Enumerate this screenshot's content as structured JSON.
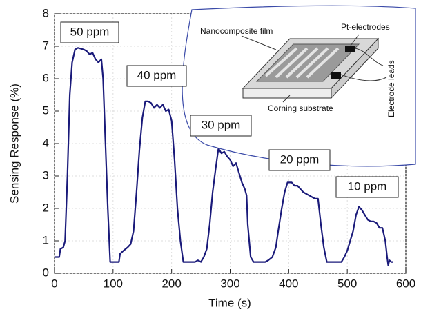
{
  "chart_data": {
    "type": "line",
    "xlabel": "Time (s)",
    "ylabel": "Sensing Response (%)",
    "xlim": [
      0,
      600
    ],
    "ylim": [
      0,
      8
    ],
    "xticks": [
      0,
      100,
      200,
      300,
      400,
      500,
      600
    ],
    "yticks": [
      0,
      1,
      2,
      3,
      4,
      5,
      6,
      7,
      8
    ],
    "grid": true,
    "x": [
      0,
      8,
      10,
      15,
      18,
      22,
      26,
      30,
      35,
      40,
      50,
      55,
      60,
      65,
      70,
      75,
      80,
      83,
      87,
      91,
      95,
      100,
      110,
      112,
      118,
      125,
      130,
      135,
      140,
      145,
      150,
      155,
      160,
      165,
      170,
      175,
      180,
      185,
      190,
      195,
      200,
      205,
      210,
      215,
      220,
      230,
      240,
      245,
      250,
      255,
      260,
      265,
      270,
      275,
      280,
      285,
      290,
      295,
      300,
      305,
      310,
      315,
      320,
      325,
      328,
      330,
      335,
      340,
      360,
      365,
      372,
      378,
      382,
      388,
      393,
      398,
      405,
      410,
      415,
      425,
      435,
      445,
      450,
      455,
      460,
      465,
      480,
      490,
      495,
      500,
      505,
      510,
      515,
      520,
      525,
      530,
      535,
      540,
      545,
      550,
      555,
      560,
      565,
      568,
      570,
      572,
      575,
      578
    ],
    "series": [
      {
        "color": "#1a1a7a",
        "values": [
          0.5,
          0.5,
          0.75,
          0.8,
          1.0,
          3,
          5.5,
          6.5,
          6.9,
          6.95,
          6.9,
          6.85,
          6.75,
          6.8,
          6.6,
          6.5,
          6.6,
          6.0,
          4,
          2,
          0.35,
          0.35,
          0.35,
          0.6,
          0.7,
          0.8,
          0.9,
          1.3,
          2.5,
          3.8,
          4.8,
          5.3,
          5.3,
          5.25,
          5.1,
          5.2,
          5.1,
          5.2,
          5.0,
          5.05,
          4.7,
          3.5,
          2,
          1,
          0.35,
          0.35,
          0.35,
          0.4,
          0.35,
          0.5,
          0.75,
          1.5,
          2.5,
          3.2,
          3.85,
          3.7,
          3.75,
          3.6,
          3.5,
          3.3,
          3.4,
          3.1,
          2.8,
          2.6,
          2.4,
          1.5,
          0.5,
          0.35,
          0.35,
          0.4,
          0.5,
          0.8,
          1.3,
          2.0,
          2.5,
          2.8,
          2.8,
          2.7,
          2.7,
          2.5,
          2.4,
          2.3,
          2.3,
          1.5,
          0.8,
          0.35,
          0.35,
          0.35,
          0.5,
          0.7,
          1.0,
          1.3,
          1.8,
          2.05,
          1.95,
          1.8,
          1.65,
          1.6,
          1.6,
          1.55,
          1.4,
          1.4,
          1.0,
          0.5,
          0.25,
          0.4,
          0.35,
          0.35
        ]
      }
    ],
    "annotations": [
      "50 ppm",
      "40 ppm",
      "30 ppm",
      "20 ppm",
      "10 ppm"
    ],
    "inset_labels": [
      "Nanocomposite film",
      "Pt-electrodes",
      "Electrode leads",
      "Corning substrate"
    ]
  }
}
